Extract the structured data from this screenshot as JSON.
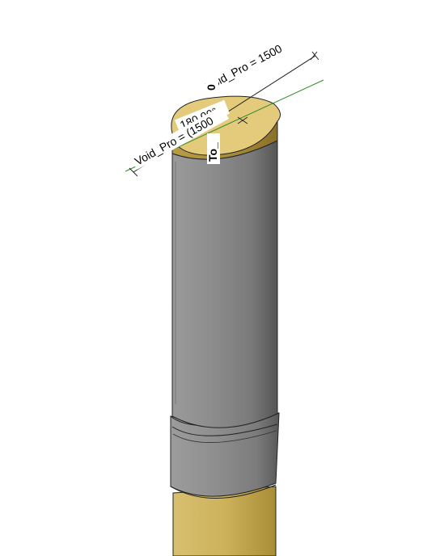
{
  "canvas": {
    "background": "#ffffff"
  },
  "model": {
    "colors": {
      "shaft_light": "#a9a9a9",
      "shaft_mid": "#8c8c8c",
      "shaft_dark": "#5e5e5e",
      "cap_top": "#e2c97a",
      "cap_side": "#c9ad58",
      "base_top": "#d4bb66",
      "base_side": "#b89a3f",
      "reference_line": "#2e8b2e"
    }
  },
  "annotations": {
    "dim_top": "Void_Pro = 1500",
    "dim_left": "Void_Pro = (1500",
    "angle": "180.00°",
    "vertical_top": "0",
    "vertical_bottom": "To_"
  }
}
